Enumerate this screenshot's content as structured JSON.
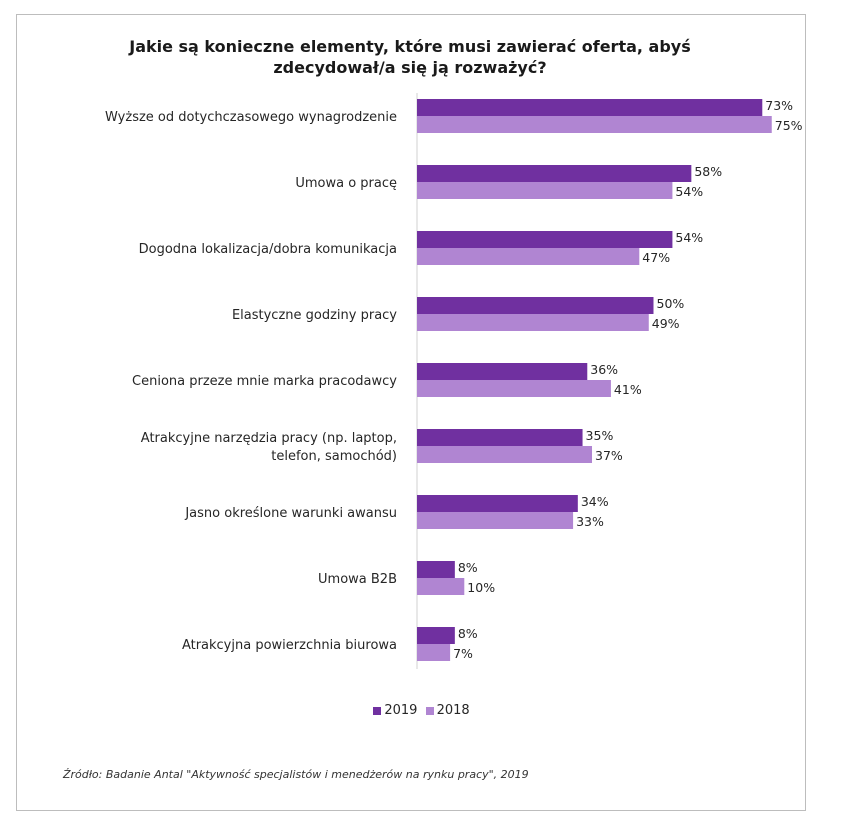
{
  "chart_data": {
    "type": "bar",
    "orientation": "horizontal",
    "title": [
      "Jakie są konieczne elementy, które musi zawierać oferta, abyś",
      "zdecydował/a  się ją rozważyć?"
    ],
    "categories": [
      [
        "Wyższe od dotychczasowego wynagrodzenie"
      ],
      [
        "Umowa o pracę"
      ],
      [
        "Dogodna lokalizacja/dobra komunikacja"
      ],
      [
        "Elastyczne godziny pracy"
      ],
      [
        "Ceniona przeze mnie marka pracodawcy"
      ],
      [
        "Atrakcyjne narzędzia pracy  (np. laptop,",
        "telefon, samochód)"
      ],
      [
        "Jasno określone warunki awansu"
      ],
      [
        "Umowa B2B"
      ],
      [
        "Atrakcyjna powierzchnia biurowa"
      ]
    ],
    "series": [
      {
        "name": "2019",
        "color": "#7030a0",
        "values": [
          73,
          58,
          54,
          50,
          36,
          35,
          34,
          8,
          8
        ]
      },
      {
        "name": "2018",
        "color": "#b085d2",
        "values": [
          75,
          54,
          47,
          49,
          41,
          37,
          33,
          10,
          7
        ]
      }
    ],
    "value_suffix": "%",
    "xlim": [
      0,
      100
    ],
    "grid": false,
    "legend_position": "bottom",
    "source": "Źródło: Badanie Antal \"Aktywność specjalistów i menedżerów na rynku pracy\", 2019"
  }
}
